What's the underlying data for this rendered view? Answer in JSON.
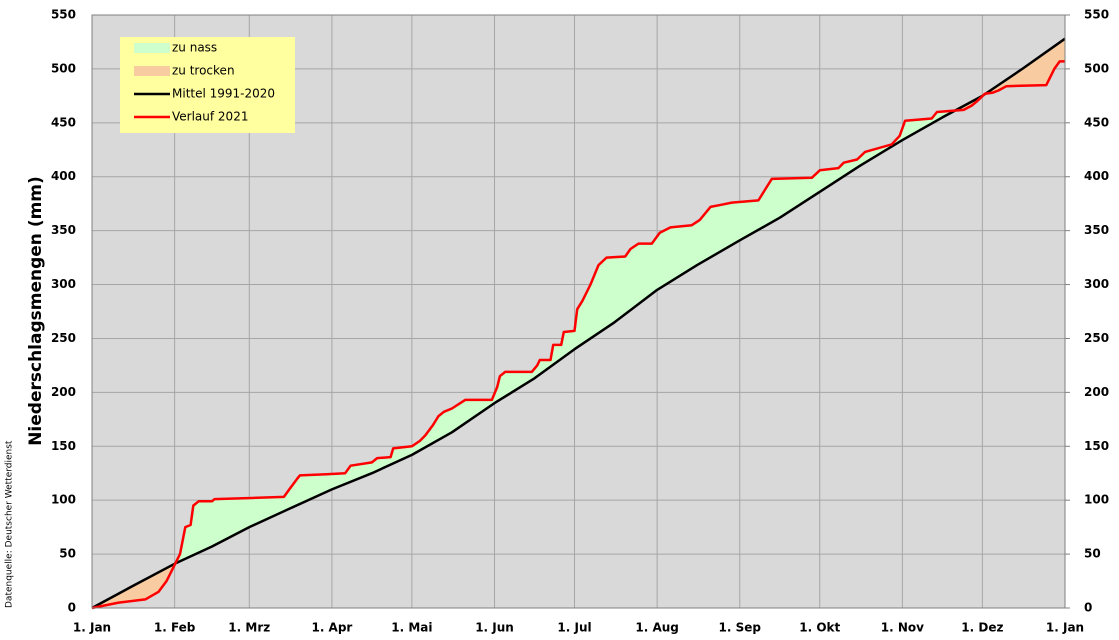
{
  "chart_data": {
    "type": "line",
    "y_label": "Niederschlagsmengen (mm)",
    "source": "Datenquelle: Deutscher Wetterdienst",
    "xlim": [
      0,
      365
    ],
    "xticks": [
      {
        "value": 0,
        "label": "1. Jan"
      },
      {
        "value": 31,
        "label": "1. Feb"
      },
      {
        "value": 59,
        "label": "1. Mrz"
      },
      {
        "value": 90,
        "label": "1. Apr"
      },
      {
        "value": 120,
        "label": "1. Mai"
      },
      {
        "value": 151,
        "label": "1. Jun"
      },
      {
        "value": 181,
        "label": "1. Jul"
      },
      {
        "value": 212,
        "label": "1. Aug"
      },
      {
        "value": 243,
        "label": "1. Sep"
      },
      {
        "value": 273,
        "label": "1. Okt"
      },
      {
        "value": 304,
        "label": "1. Nov"
      },
      {
        "value": 334,
        "label": "1. Dez"
      },
      {
        "value": 365,
        "label": "1. Jan"
      }
    ],
    "ylim": [
      0,
      550
    ],
    "yticks": [
      0,
      50,
      100,
      150,
      200,
      250,
      300,
      350,
      400,
      450,
      500,
      550
    ],
    "y2lim": [
      0,
      550
    ],
    "y2ticks": [
      0,
      50,
      100,
      150,
      200,
      250,
      300,
      350,
      400,
      450,
      500,
      550
    ],
    "grid": true,
    "legend": "upper left",
    "areas": [
      {
        "name": "zu nass",
        "color": "#ccffcc"
      },
      {
        "name": "zu trocken",
        "color": "#f8cba0"
      }
    ],
    "series": [
      {
        "name": "Mittel 1991-2020",
        "color": "#000000",
        "x": [
          0,
          15,
          31,
          45,
          59,
          74,
          90,
          105,
          120,
          135,
          151,
          166,
          181,
          196,
          212,
          227,
          243,
          258,
          273,
          288,
          304,
          319,
          334,
          349,
          365
        ],
        "values": [
          0,
          20,
          41,
          57,
          75,
          92,
          110,
          125,
          142,
          163,
          190,
          213,
          240,
          265,
          295,
          318,
          341,
          362,
          386,
          410,
          434,
          455,
          475,
          500,
          528
        ]
      },
      {
        "name": "Verlauf 2021",
        "color": "#ff0000",
        "x": [
          0,
          10,
          20,
          25,
          28,
          31,
          33,
          35,
          37,
          38,
          40,
          45,
          46,
          60,
          72,
          74,
          77,
          78,
          88,
          95,
          97,
          105,
          107,
          112,
          113,
          120,
          123,
          125,
          128,
          130,
          132,
          135,
          140,
          150,
          152,
          153,
          155,
          165,
          167,
          168,
          172,
          173,
          176,
          177,
          181,
          182,
          184,
          187,
          190,
          193,
          200,
          202,
          205,
          210,
          213,
          217,
          225,
          228,
          232,
          236,
          240,
          250,
          253,
          255,
          270,
          273,
          280,
          282,
          287,
          290,
          300,
          303,
          305,
          315,
          317,
          327,
          330,
          332,
          335,
          338,
          340,
          343,
          358,
          361,
          363,
          365
        ],
        "values": [
          0,
          5,
          8,
          15,
          25,
          40,
          50,
          75,
          77,
          95,
          99,
          99,
          101,
          102,
          103,
          110,
          120,
          123,
          124,
          125,
          132,
          135,
          139,
          140,
          148,
          150,
          155,
          160,
          170,
          178,
          182,
          185,
          193,
          193,
          205,
          215,
          219,
          219,
          225,
          230,
          230,
          244,
          244,
          256,
          257,
          277,
          285,
          300,
          318,
          325,
          326,
          333,
          338,
          338,
          348,
          353,
          355,
          360,
          372,
          374,
          376,
          378,
          390,
          398,
          399,
          406,
          408,
          413,
          416,
          423,
          430,
          438,
          452,
          454,
          460,
          462,
          466,
          470,
          477,
          478,
          480,
          484,
          485,
          500,
          507,
          507
        ]
      }
    ]
  }
}
